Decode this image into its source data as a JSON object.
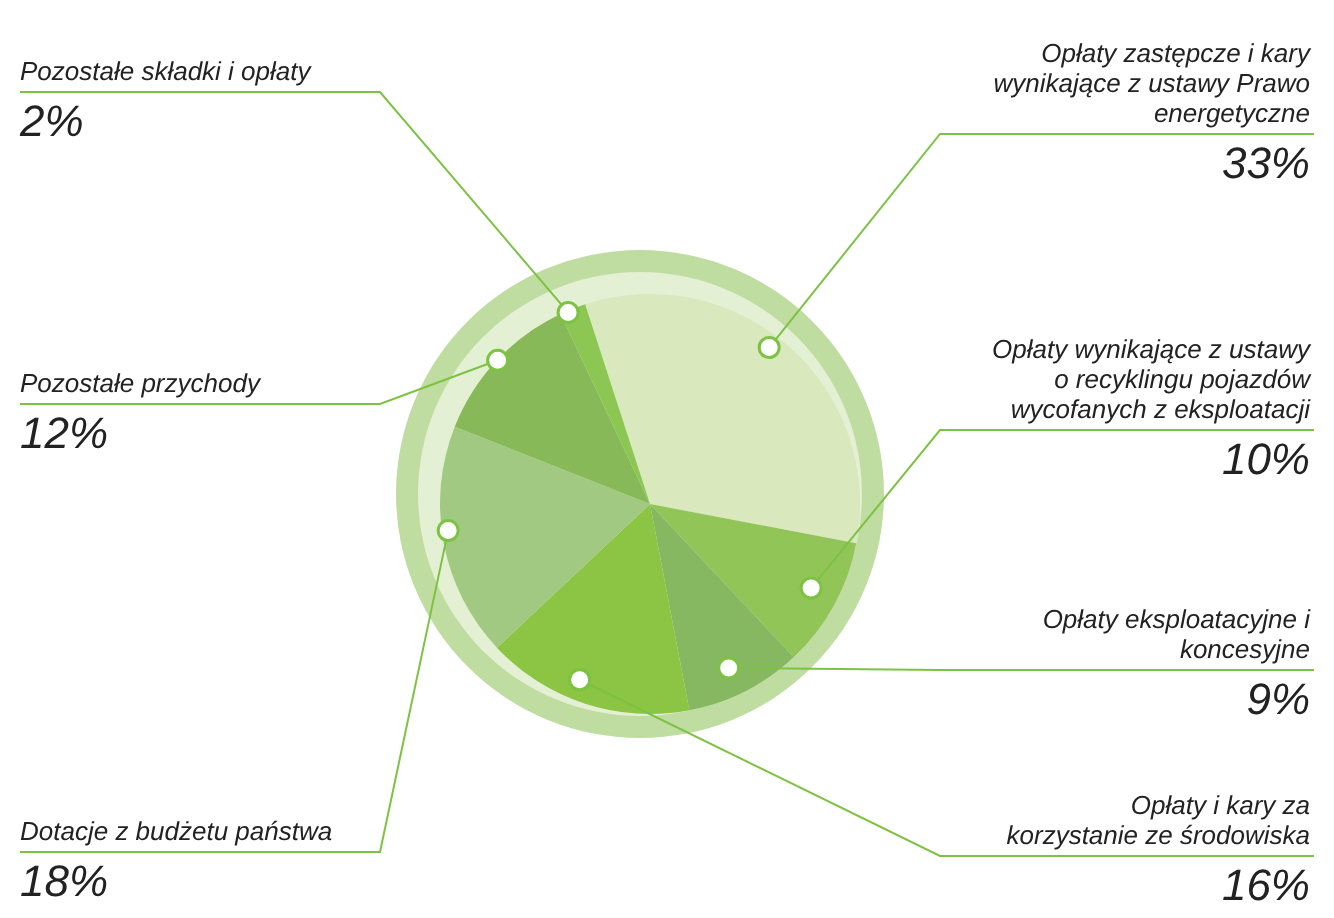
{
  "chart_data": {
    "type": "pie",
    "categories": [
      "Opłaty zastępcze i kary wynikające z ustawy Prawo energetyczne",
      "Opłaty wynikające z ustawy o recyklingu pojazdów wycofanych z eksploatacji",
      "Opłaty eksploatacyjne i koncesyjne",
      "Opłaty i kary za korzystanie ze środowiska",
      "Dotacje z budżetu państwa",
      "Pozostałe przychody",
      "Pozostałe składki i opłaty"
    ],
    "values": [
      33,
      10,
      9,
      16,
      18,
      12,
      2
    ],
    "value_labels": [
      "33%",
      "10%",
      "9%",
      "16%",
      "18%",
      "12%",
      "2%"
    ],
    "colors": [
      "#d9e9bd",
      "#92c557",
      "#86b862",
      "#8cc443",
      "#a2c982",
      "#88b958",
      "#8cc653"
    ]
  }
}
